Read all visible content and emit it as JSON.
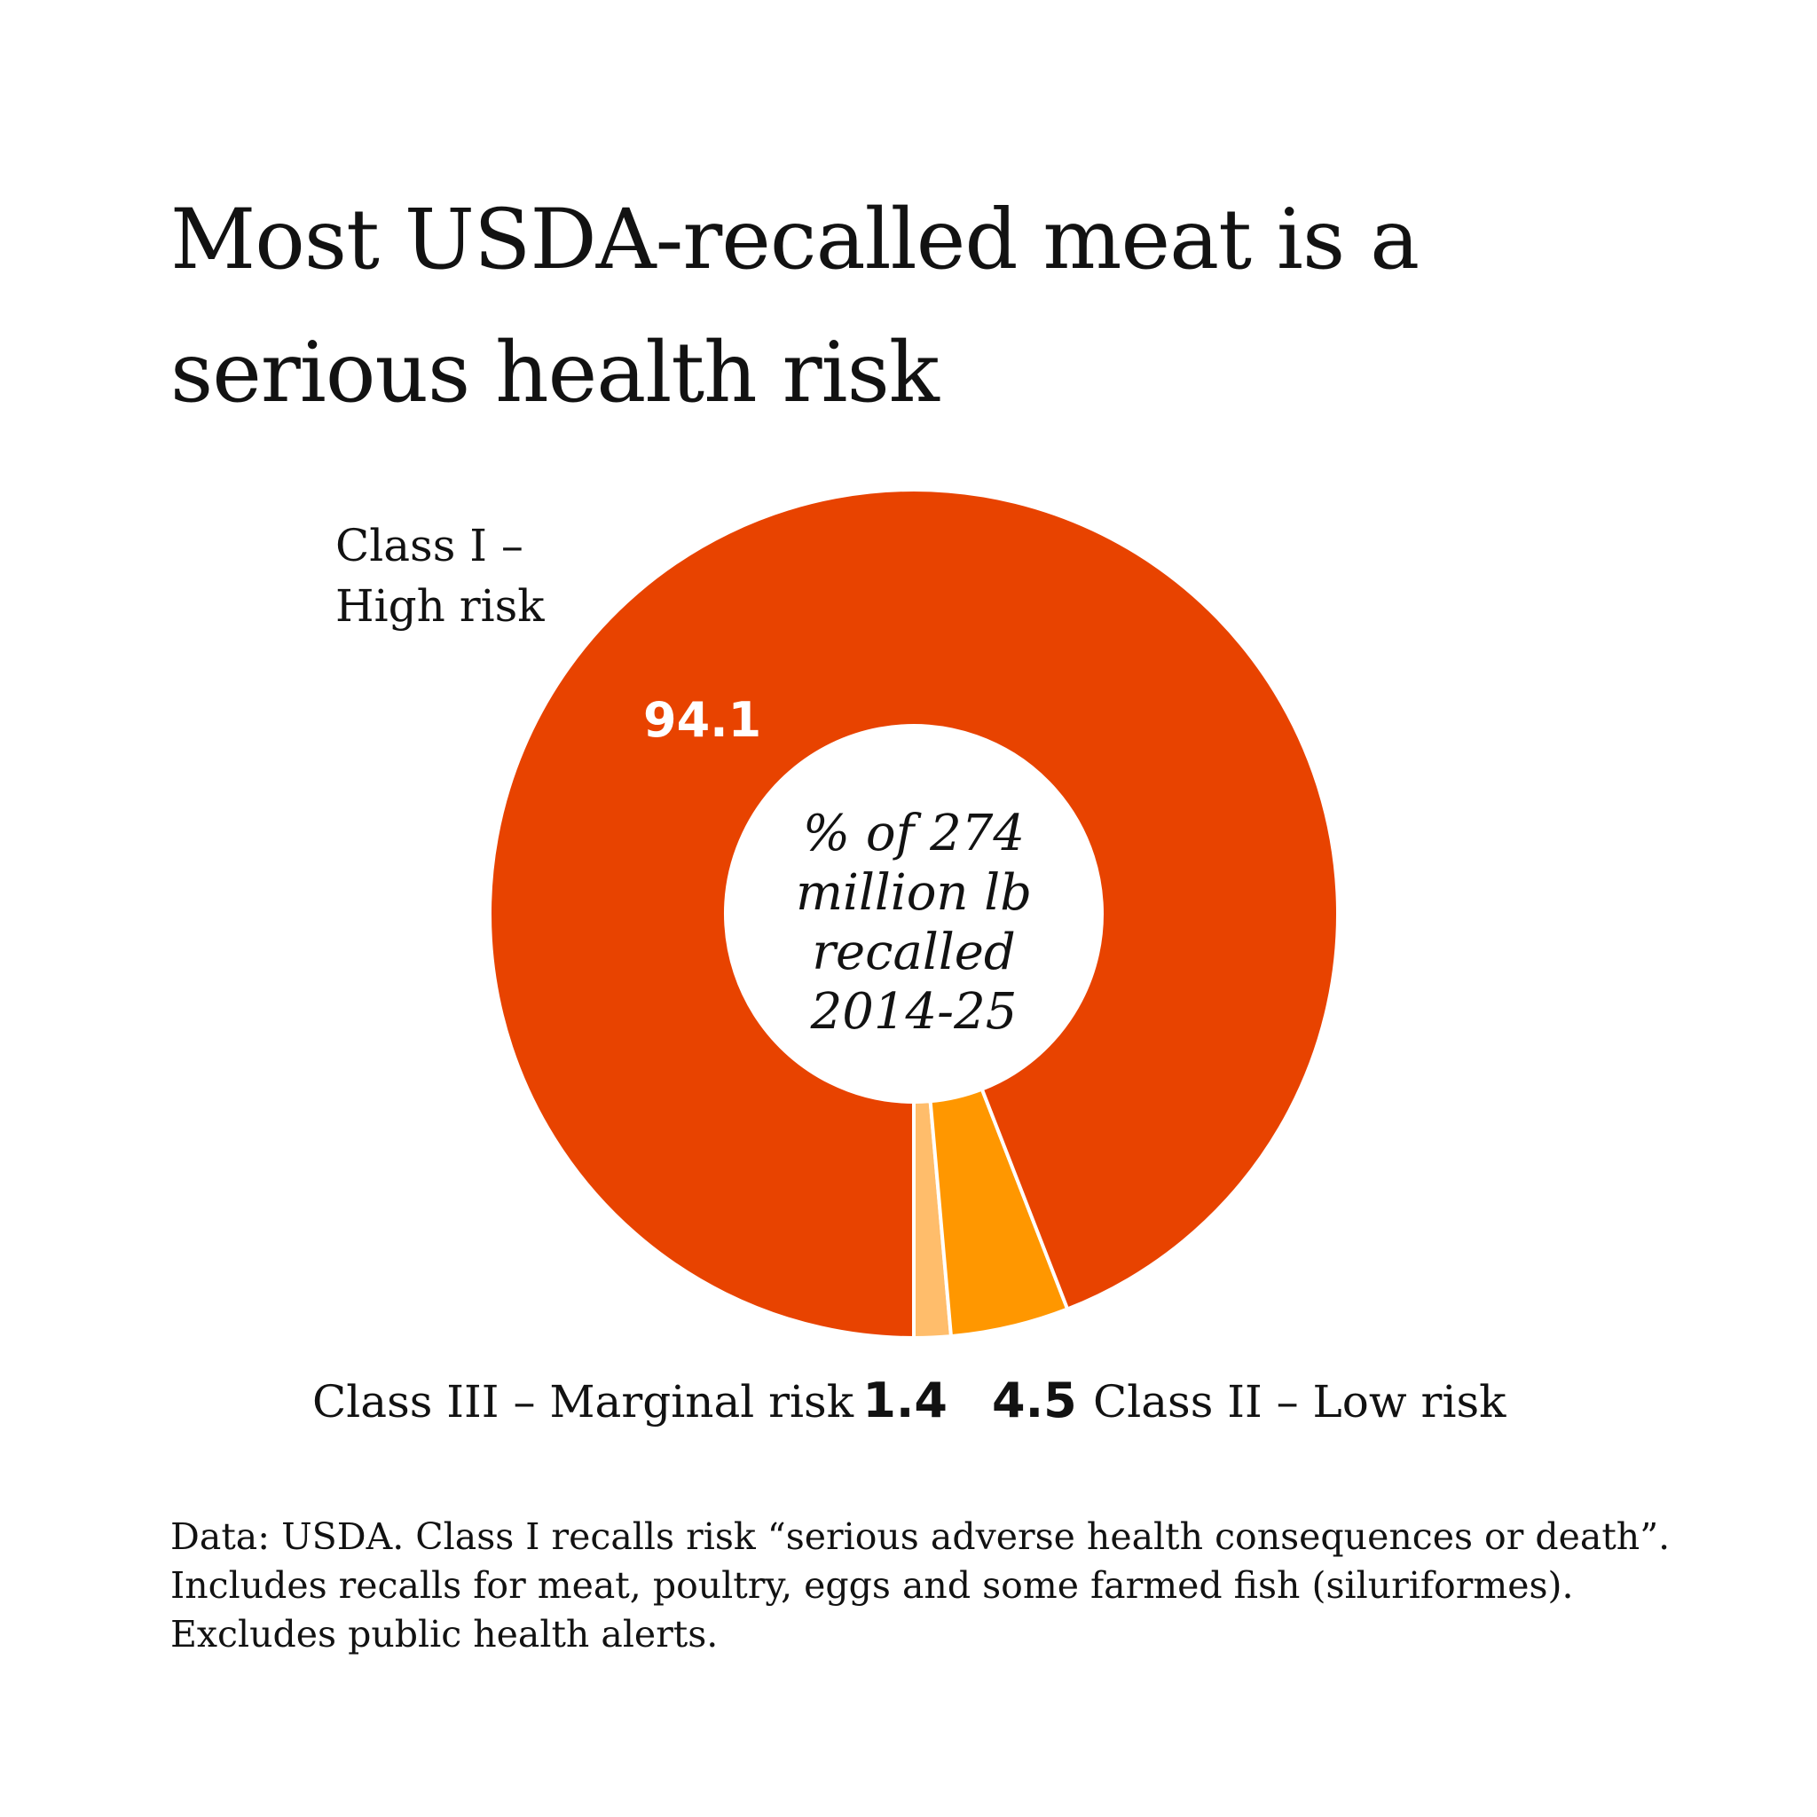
{
  "title": "Most USDA-recalled meat is a serious health risk",
  "footnote": "Data: USDA. Class I recalls risk “serious adverse health consequences or death”. Includes recalls for meat, poultry, eggs and some farmed fish (siluriformes). Excludes public health alerts.",
  "chart_data": {
    "type": "pie",
    "donut": true,
    "center_label": [
      "% of 274",
      "million lb",
      "recalled",
      "2014-25"
    ],
    "slices": [
      {
        "name": "Class I – High risk",
        "name_lines": [
          "Class I –",
          "High risk"
        ],
        "value": 94.1,
        "value_label": "94.1",
        "color": "#E84300"
      },
      {
        "name": "Class II – Low risk",
        "value": 4.5,
        "value_label": "4.5",
        "color": "#FF9700"
      },
      {
        "name": "Class III – Marginal risk",
        "value": 1.4,
        "value_label": "1.4",
        "color": "#FFBD6B"
      }
    ],
    "colors": {
      "value_label_inside": "#ffffff",
      "value_label_outside": "#121212",
      "slice_border": "#ffffff"
    }
  }
}
